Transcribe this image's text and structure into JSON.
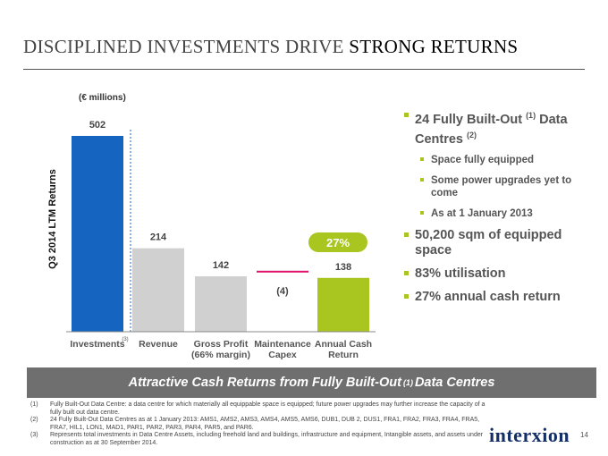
{
  "title": {
    "part1": "DISCIPLINED INVESTMENTS DRIVE",
    "part2": "STRONG RETURNS"
  },
  "chart_data": {
    "type": "bar",
    "unit_label": "(€ millions)",
    "ylabel": "Q3 2014 LTM Returns",
    "categories": [
      "Investments",
      "Revenue",
      "Gross Profit (66% margin)",
      "Maintenance Capex",
      "Annual Cash Return"
    ],
    "category_lines": [
      [
        "Investments"
      ],
      [
        "Revenue"
      ],
      [
        "Gross Profit",
        "(66% margin)"
      ],
      [
        "Maintenance",
        "Capex"
      ],
      [
        "Annual Cash",
        "Return"
      ]
    ],
    "category_superscript": {
      "index": 0,
      "text": "(3)"
    },
    "values": [
      502,
      214,
      142,
      -4,
      138
    ],
    "value_labels": [
      "502",
      "214",
      "142",
      "(4)",
      "138"
    ],
    "colors": [
      "#1565c0",
      "#d0d0d0",
      "#d0d0d0",
      "#e0116b",
      "#a8c520"
    ],
    "waterfall": true,
    "annotation": {
      "text": "27%",
      "color": "#a8c520",
      "target_index": 4
    }
  },
  "bullets": [
    {
      "text": "24 Fully Built-Out",
      "sup": "(1)",
      "text2": "Data Centres",
      "sup2": "(2)",
      "sub": [
        "Space fully equipped",
        "Some power upgrades yet to come",
        "As at 1 January 2013"
      ]
    },
    {
      "text": "50,200 sqm of equipped space"
    },
    {
      "text": "83% utilisation"
    },
    {
      "text": "27% annual cash return"
    }
  ],
  "banner": {
    "before": "Attractive Cash Returns from Fully Built-Out",
    "sup": "(1)",
    "after": "Data Centres"
  },
  "footnotes": [
    {
      "num": "(1)",
      "text": "Fully Built-Out Data Centre: a data centre for which materially all equippable space is equipped; future power upgrades may further increase the capacity of a fully built out data centre."
    },
    {
      "num": "(2)",
      "text": "24 Fully Built-Out Data Centres as at 1 January 2013: AMS1, AMS2, AMS3, AMS4, AMS5, AMS6, DUB1, DUB 2, DUS1, FRA1, FRA2, FRA3, FRA4, FRA5, FRA7, HIL1, LON1, MAD1, PAR1, PAR2, PAR3, PAR4, PAR5, and PAR6."
    },
    {
      "num": "(3)",
      "text": "Represents total investments in Data Centre Assets, including freehold land and buildings, infrastructure and equipment, Intangible assets, and assets under construction as at 30 September 2014."
    }
  ],
  "logo": "interxion",
  "page_number": "14"
}
